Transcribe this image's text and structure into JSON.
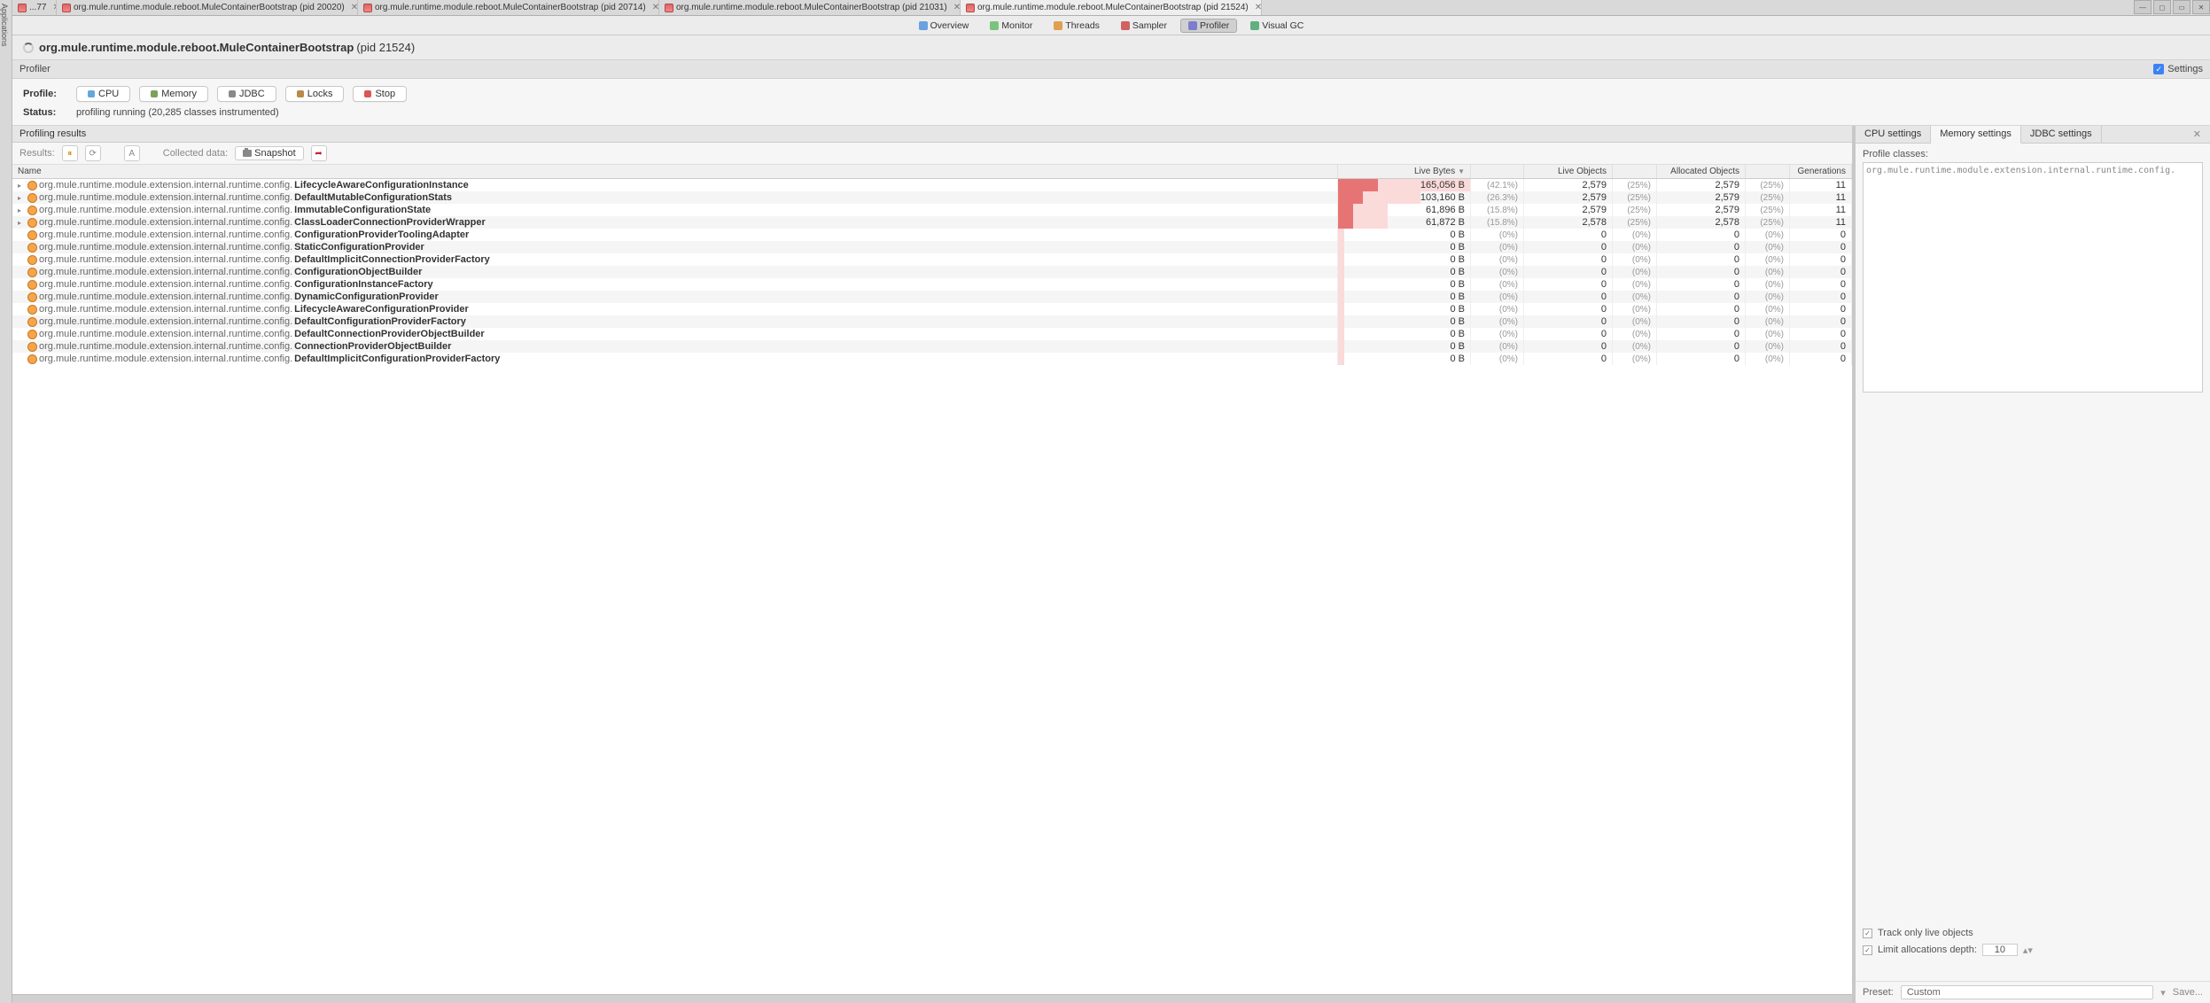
{
  "leftRail": "Applications",
  "tabs": [
    {
      "label": "...77",
      "closable": true
    },
    {
      "label": "org.mule.runtime.module.reboot.MuleContainerBootstrap (pid 20020)",
      "closable": true
    },
    {
      "label": "org.mule.runtime.module.reboot.MuleContainerBootstrap (pid 20714)",
      "closable": true
    },
    {
      "label": "org.mule.runtime.module.reboot.MuleContainerBootstrap (pid 21031)",
      "closable": true
    },
    {
      "label": "org.mule.runtime.module.reboot.MuleContainerBootstrap (pid 21524)",
      "closable": true,
      "active": true
    }
  ],
  "views": [
    {
      "label": "Overview",
      "color": "#6aa1e0"
    },
    {
      "label": "Monitor",
      "color": "#7bc47f"
    },
    {
      "label": "Threads",
      "color": "#e0a050"
    },
    {
      "label": "Sampler",
      "color": "#d06262"
    },
    {
      "label": "Profiler",
      "color": "#7d7dd0",
      "active": true
    },
    {
      "label": "Visual GC",
      "color": "#60b080"
    }
  ],
  "title": {
    "main": "org.mule.runtime.module.reboot.MuleContainerBootstrap",
    "pid": "(pid 21524)"
  },
  "subheader": {
    "left": "Profiler",
    "right": "Settings"
  },
  "profileButtons": {
    "label": "Profile:",
    "buttons": [
      {
        "label": "CPU",
        "color": "#63a7db"
      },
      {
        "label": "Memory",
        "color": "#7aa25c"
      },
      {
        "label": "JDBC",
        "color": "#8a8a8a"
      },
      {
        "label": "Locks",
        "color": "#b88b4a"
      },
      {
        "label": "Stop",
        "color": "#d55"
      }
    ]
  },
  "status": {
    "label": "Status:",
    "text": "profiling running (20,285 classes instrumented)"
  },
  "resultsHeader": "Profiling results",
  "resultsToolbar": {
    "resultsLabel": "Results:",
    "collectedLabel": "Collected data:",
    "snapshotLabel": "Snapshot"
  },
  "columns": {
    "name": "Name",
    "liveBytes": "Live Bytes",
    "liveObjects": "Live Objects",
    "allocObjects": "Allocated Objects",
    "generations": "Generations"
  },
  "packagePrefix": "org.mule.runtime.module.extension.internal.runtime.config.",
  "maxBytes": 165056,
  "rows": [
    {
      "expandable": true,
      "cls": "LifecycleAwareConfigurationInstance",
      "bytes": "165,056 B",
      "bval": 165056,
      "bpct": "(42.1%)",
      "objs": "2,579",
      "opct": "(25%)",
      "alloc": "2,579",
      "apct": "(25%)",
      "gen": "11"
    },
    {
      "expandable": true,
      "cls": "DefaultMutableConfigurationStats",
      "bytes": "103,160 B",
      "bval": 103160,
      "bpct": "(26.3%)",
      "objs": "2,579",
      "opct": "(25%)",
      "alloc": "2,579",
      "apct": "(25%)",
      "gen": "11"
    },
    {
      "expandable": true,
      "cls": "ImmutableConfigurationState",
      "bytes": "61,896 B",
      "bval": 61896,
      "bpct": "(15.8%)",
      "objs": "2,579",
      "opct": "(25%)",
      "alloc": "2,579",
      "apct": "(25%)",
      "gen": "11"
    },
    {
      "expandable": true,
      "cls": "ClassLoaderConnectionProviderWrapper",
      "bytes": "61,872 B",
      "bval": 61872,
      "bpct": "(15.8%)",
      "objs": "2,578",
      "opct": "(25%)",
      "alloc": "2,578",
      "apct": "(25%)",
      "gen": "11"
    },
    {
      "cls": "ConfigurationProviderToolingAdapter",
      "bytes": "0 B",
      "bval": 0,
      "bpct": "(0%)",
      "objs": "0",
      "opct": "(0%)",
      "alloc": "0",
      "apct": "(0%)",
      "gen": "0"
    },
    {
      "cls": "StaticConfigurationProvider",
      "bytes": "0 B",
      "bval": 0,
      "bpct": "(0%)",
      "objs": "0",
      "opct": "(0%)",
      "alloc": "0",
      "apct": "(0%)",
      "gen": "0"
    },
    {
      "cls": "DefaultImplicitConnectionProviderFactory",
      "bytes": "0 B",
      "bval": 0,
      "bpct": "(0%)",
      "objs": "0",
      "opct": "(0%)",
      "alloc": "0",
      "apct": "(0%)",
      "gen": "0"
    },
    {
      "cls": "ConfigurationObjectBuilder",
      "bytes": "0 B",
      "bval": 0,
      "bpct": "(0%)",
      "objs": "0",
      "opct": "(0%)",
      "alloc": "0",
      "apct": "(0%)",
      "gen": "0"
    },
    {
      "cls": "ConfigurationInstanceFactory",
      "bytes": "0 B",
      "bval": 0,
      "bpct": "(0%)",
      "objs": "0",
      "opct": "(0%)",
      "alloc": "0",
      "apct": "(0%)",
      "gen": "0"
    },
    {
      "cls": "DynamicConfigurationProvider",
      "bytes": "0 B",
      "bval": 0,
      "bpct": "(0%)",
      "objs": "0",
      "opct": "(0%)",
      "alloc": "0",
      "apct": "(0%)",
      "gen": "0"
    },
    {
      "cls": "LifecycleAwareConfigurationProvider",
      "bytes": "0 B",
      "bval": 0,
      "bpct": "(0%)",
      "objs": "0",
      "opct": "(0%)",
      "alloc": "0",
      "apct": "(0%)",
      "gen": "0"
    },
    {
      "cls": "DefaultConfigurationProviderFactory",
      "bytes": "0 B",
      "bval": 0,
      "bpct": "(0%)",
      "objs": "0",
      "opct": "(0%)",
      "alloc": "0",
      "apct": "(0%)",
      "gen": "0"
    },
    {
      "cls": "DefaultConnectionProviderObjectBuilder",
      "bytes": "0 B",
      "bval": 0,
      "bpct": "(0%)",
      "objs": "0",
      "opct": "(0%)",
      "alloc": "0",
      "apct": "(0%)",
      "gen": "0"
    },
    {
      "cls": "ConnectionProviderObjectBuilder",
      "bytes": "0 B",
      "bval": 0,
      "bpct": "(0%)",
      "objs": "0",
      "opct": "(0%)",
      "alloc": "0",
      "apct": "(0%)",
      "gen": "0"
    },
    {
      "cls": "DefaultImplicitConfigurationProviderFactory",
      "bytes": "0 B",
      "bval": 0,
      "bpct": "(0%)",
      "objs": "0",
      "opct": "(0%)",
      "alloc": "0",
      "apct": "(0%)",
      "gen": "0"
    }
  ],
  "settings": {
    "tabs": [
      {
        "label": "CPU settings"
      },
      {
        "label": "Memory settings",
        "active": true
      },
      {
        "label": "JDBC settings"
      }
    ],
    "profileClassesLabel": "Profile classes:",
    "profileClassesText": "org.mule.runtime.module.extension.internal.runtime.config.",
    "trackLive": "Track only live objects",
    "limitDepth": "Limit allocations depth:",
    "depthValue": "10",
    "presetLabel": "Preset:",
    "presetValue": "Custom",
    "saveLabel": "Save..."
  }
}
